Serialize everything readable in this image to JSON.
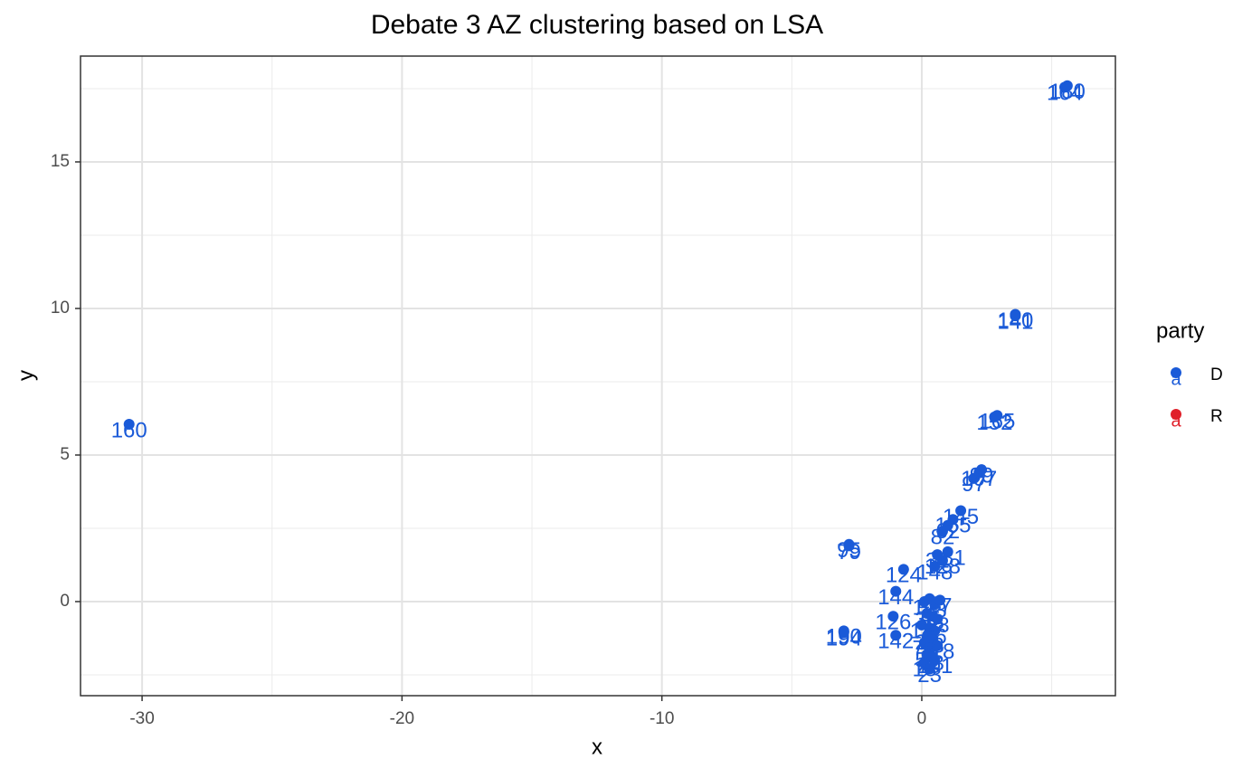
{
  "chart_data": {
    "type": "scatter",
    "title": "Debate 3 AZ clustering based on LSA",
    "x_label": "x",
    "y_label": "y",
    "xlim": [
      -32.37,
      7.45
    ],
    "ylim": [
      -3.21,
      18.61
    ],
    "xticks": [
      -30,
      -20,
      -10,
      0
    ],
    "yticks": [
      0,
      5,
      10,
      15
    ],
    "x_minor_grid": [
      -25,
      -15,
      -5,
      5
    ],
    "y_minor_grid": [
      -2.5,
      2.5,
      7.5,
      12.5,
      17.5
    ],
    "grid": true,
    "legend_title": "party",
    "legend_position": "right",
    "legend_key_glyph": "a",
    "series": [
      {
        "name": "D",
        "color": "#1a5ad8",
        "x": [
          -30.5,
          5.5,
          5.6,
          3.6,
          3.6,
          2.8,
          2.9,
          2.0,
          2.2,
          2.3,
          0.8,
          1.0,
          1.2,
          1.5,
          -2.8,
          -2.8,
          0.5,
          0.8,
          0.6,
          1.0,
          -0.7,
          -1.0,
          -1.1,
          -3.0,
          -3.0,
          -1.0,
          0.1,
          0.3,
          0.5,
          0.7,
          0.2,
          0.4,
          0.6,
          0.0,
          0.3,
          0.5,
          0.2,
          0.4,
          0.1,
          0.3,
          0.6,
          0.2,
          0.4,
          0.1,
          0.5,
          0.3
        ],
        "values": [
          6.05,
          17.55,
          17.6,
          9.75,
          9.8,
          6.3,
          6.35,
          4.2,
          4.4,
          4.5,
          2.4,
          2.6,
          2.8,
          3.1,
          1.9,
          1.95,
          1.2,
          1.4,
          1.6,
          1.7,
          1.1,
          0.35,
          -0.5,
          -1.0,
          -1.05,
          -1.15,
          0.0,
          0.1,
          -0.1,
          0.05,
          -0.4,
          -0.5,
          -0.6,
          -0.8,
          -0.9,
          -1.0,
          -1.2,
          -1.3,
          -1.4,
          -1.6,
          -1.5,
          -1.8,
          -1.9,
          -2.1,
          -2.0,
          -2.3
        ],
        "labels": [
          "160",
          "164",
          "180",
          "141",
          "140",
          "152",
          "165",
          "97",
          "107",
          "99",
          "82",
          "62",
          "155",
          "145",
          "79",
          "95",
          "148",
          "128",
          "31",
          "181",
          "124",
          "144",
          "126",
          "190",
          "194",
          "142",
          "12",
          "48",
          "73",
          "27",
          "36",
          "58",
          "88",
          "14",
          "5",
          "66",
          "21",
          "43",
          "70",
          "9",
          "118",
          "55",
          "33",
          "18",
          "101",
          "23"
        ]
      },
      {
        "name": "R",
        "color": "#e0202a",
        "x": [],
        "values": [],
        "labels": []
      }
    ]
  }
}
